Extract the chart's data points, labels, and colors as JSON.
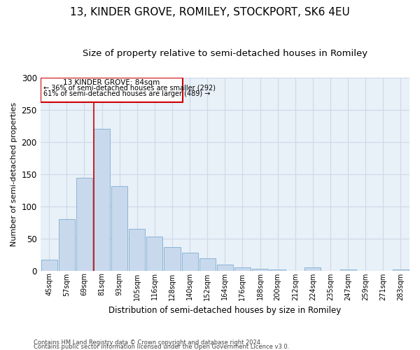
{
  "title": "13, KINDER GROVE, ROMILEY, STOCKPORT, SK6 4EU",
  "subtitle": "Size of property relative to semi-detached houses in Romiley",
  "xlabel": "Distribution of semi-detached houses by size in Romiley",
  "ylabel": "Number of semi-detached properties",
  "categories": [
    "45sqm",
    "57sqm",
    "69sqm",
    "81sqm",
    "93sqm",
    "105sqm",
    "116sqm",
    "128sqm",
    "140sqm",
    "152sqm",
    "164sqm",
    "176sqm",
    "188sqm",
    "200sqm",
    "212sqm",
    "224sqm",
    "235sqm",
    "247sqm",
    "259sqm",
    "271sqm",
    "283sqm"
  ],
  "values": [
    17,
    80,
    144,
    220,
    131,
    65,
    53,
    36,
    28,
    19,
    9,
    5,
    3,
    2,
    0,
    5,
    0,
    2,
    0,
    0,
    2
  ],
  "bar_color": "#c9d9ed",
  "bar_edge_color": "#8ab4d4",
  "grid_color": "#d0d8e8",
  "annotation_box_color": "#cc0000",
  "annotation_line_color": "#cc0000",
  "subject_label": "13 KINDER GROVE: 84sqm",
  "smaller_pct": "36% of semi-detached houses are smaller (292)",
  "larger_pct": "61% of semi-detached houses are larger (489)",
  "footer_line1": "Contains HM Land Registry data © Crown copyright and database right 2024.",
  "footer_line2": "Contains public sector information licensed under the Open Government Licence v3.0.",
  "ylim": [
    0,
    300
  ],
  "yticks": [
    0,
    50,
    100,
    150,
    200,
    250,
    300
  ],
  "background_color": "#ffffff",
  "ax_background": "#e8f0f8",
  "title_fontsize": 11,
  "subtitle_fontsize": 9.5
}
